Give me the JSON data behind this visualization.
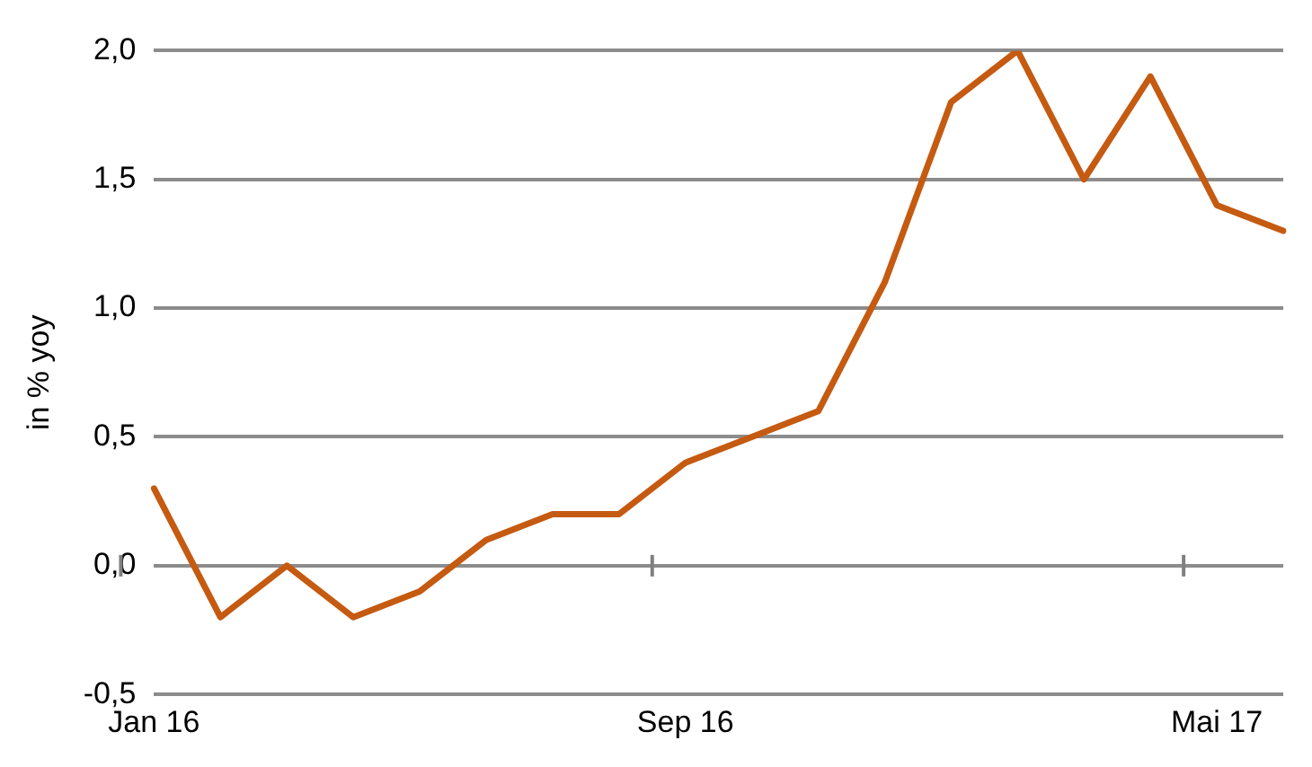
{
  "chart_data": {
    "type": "line",
    "ylabel": "in % yoy",
    "categories": [
      "Jan 16",
      null,
      null,
      null,
      null,
      null,
      null,
      null,
      "Sep 16",
      null,
      null,
      null,
      null,
      null,
      null,
      null,
      "Mai 17",
      null
    ],
    "series": [
      {
        "color": "#c55a11",
        "values": [
          0.3,
          -0.2,
          0.0,
          -0.2,
          -0.1,
          0.1,
          0.2,
          0.2,
          0.4,
          0.5,
          0.6,
          1.1,
          1.8,
          2.0,
          1.5,
          1.9,
          1.4,
          1.3
        ]
      }
    ],
    "ylim": [
      -0.5,
      2.0
    ],
    "yticks": [
      {
        "value": -0.5,
        "label": "-0,5"
      },
      {
        "value": 0,
        "label": "0,0"
      },
      {
        "value": 0.5,
        "label": "0,5"
      },
      {
        "value": 1,
        "label": "1,0"
      },
      {
        "value": 1.5,
        "label": "1,5"
      },
      {
        "value": 2,
        "label": "2,0"
      }
    ],
    "grid": "y",
    "legend": false,
    "marker": "none",
    "line_style": "solid"
  }
}
